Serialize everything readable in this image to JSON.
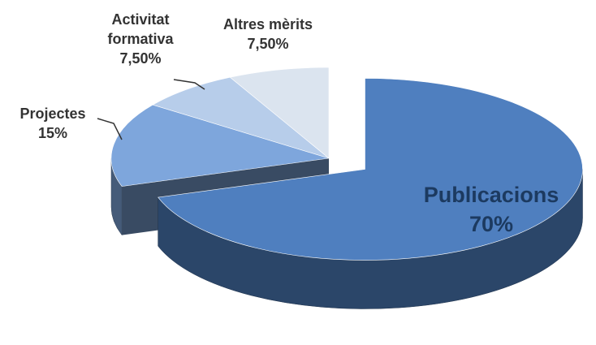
{
  "chart_data": {
    "type": "pie",
    "categories": [
      "Publicacions",
      "Projectes",
      "Activitat formativa",
      "Altres mèrits"
    ],
    "values": [
      70,
      15,
      7.5,
      7.5
    ],
    "value_labels": [
      "70%",
      "15%",
      "7,50%",
      "7,50%"
    ],
    "colors": [
      "#4f7fbf",
      "#7ea6dc",
      "#b7cdea",
      "#dbe4ef"
    ],
    "explode": [
      true,
      false,
      false,
      false
    ],
    "three_d": true
  }
}
